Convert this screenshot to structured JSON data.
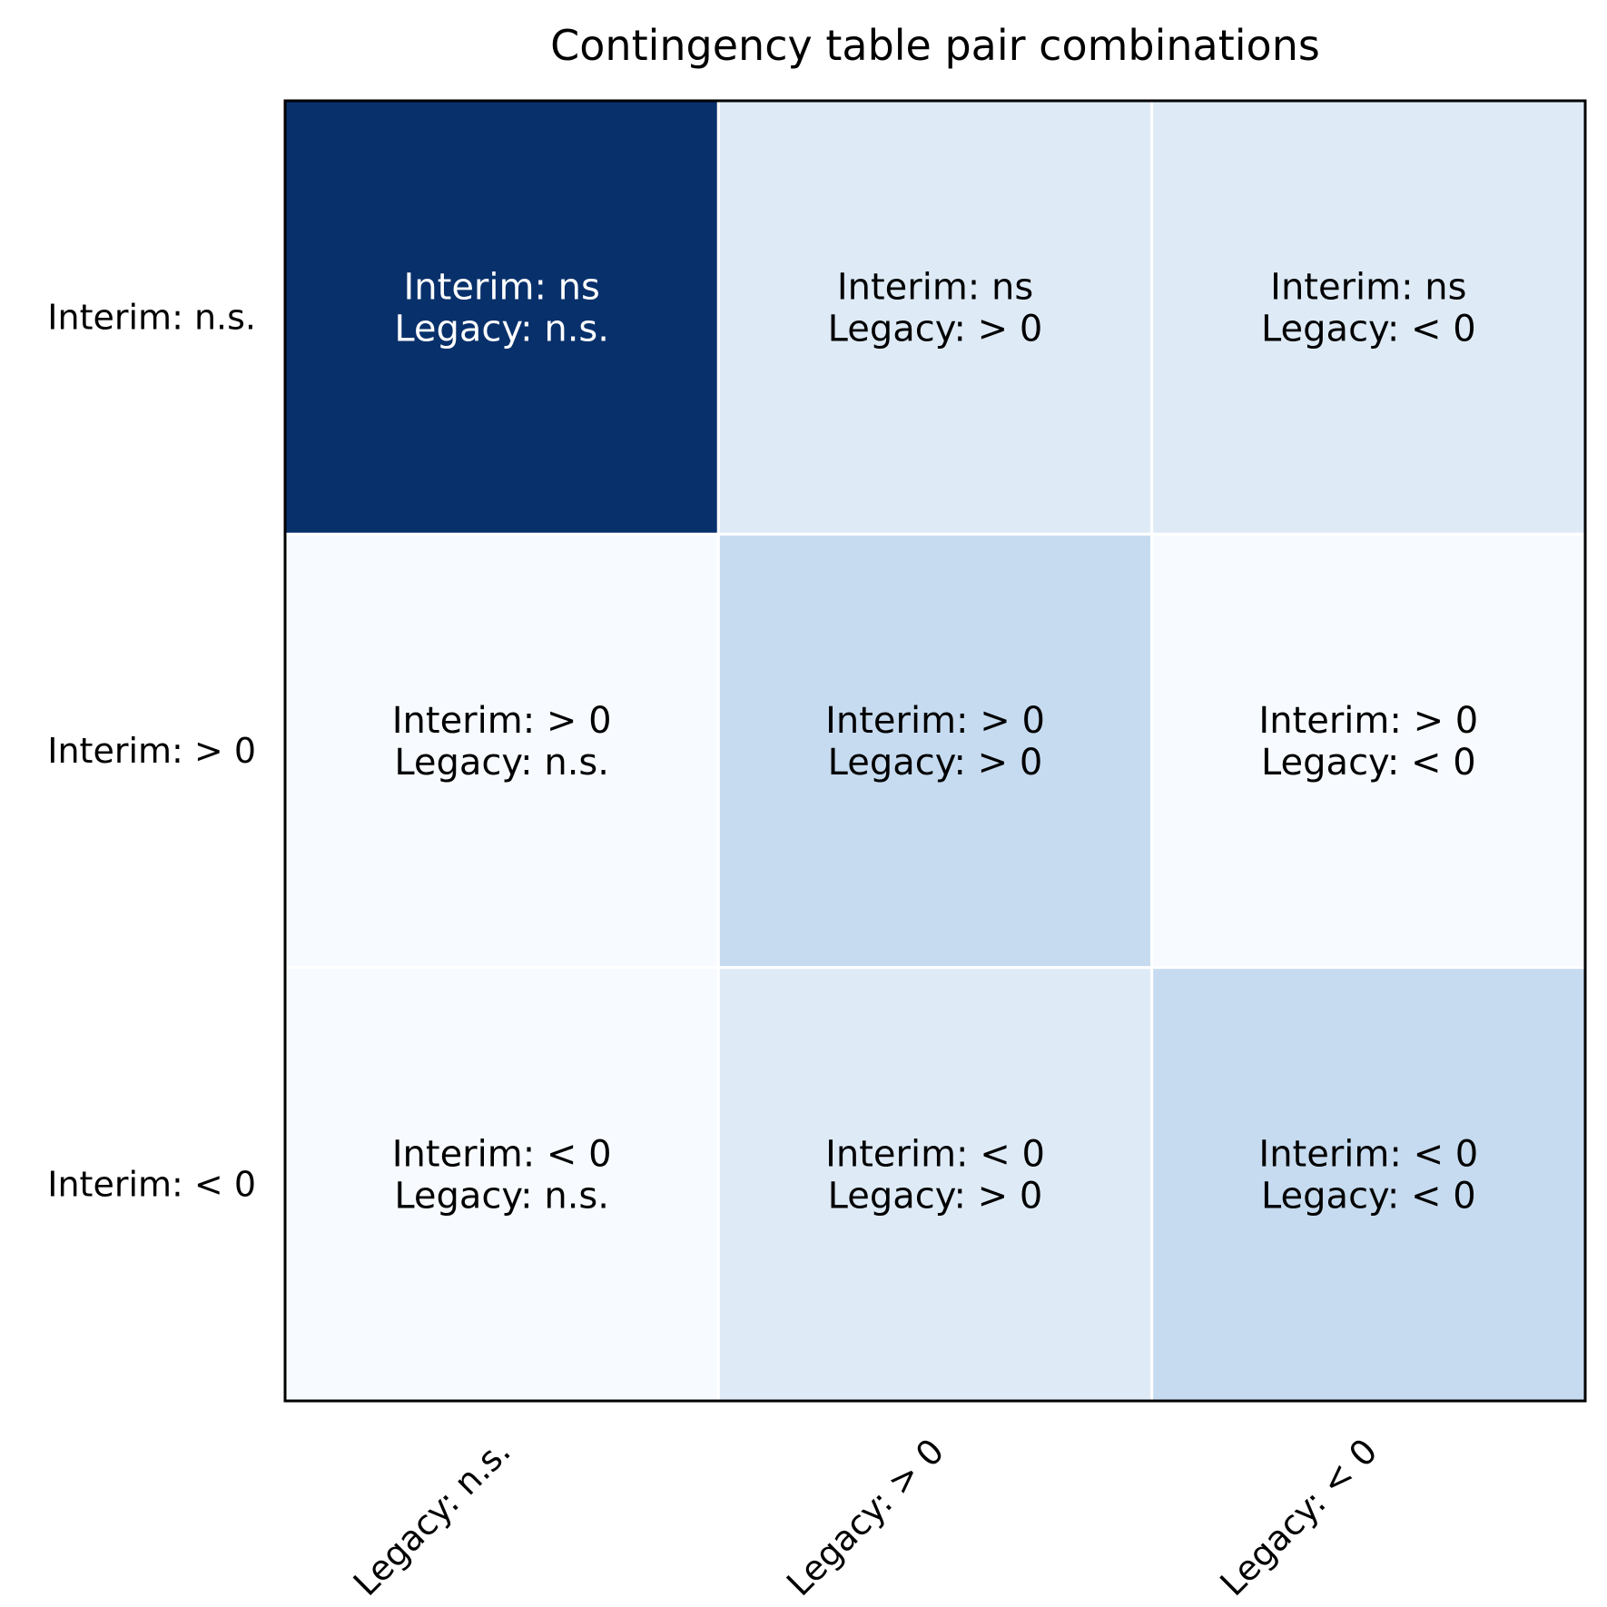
{
  "chart_data": {
    "type": "heatmap",
    "title": "Contingency table pair combinations",
    "xlabel": "",
    "ylabel": "",
    "x_categories": [
      "Legacy: n.s.",
      "Legacy: > 0",
      "Legacy: < 0"
    ],
    "y_categories": [
      "Interim: n.s.",
      "Interim: > 0",
      "Interim: < 0"
    ],
    "values": [
      [
        1.0,
        0.1,
        0.1
      ],
      [
        0.0,
        0.2,
        0.0
      ],
      [
        0.0,
        0.1,
        0.2
      ]
    ],
    "cell_labels": [
      [
        [
          "Interim: ns",
          "Legacy: n.s."
        ],
        [
          "Interim: ns",
          "Legacy: > 0"
        ],
        [
          "Interim: ns",
          "Legacy: < 0"
        ]
      ],
      [
        [
          "Interim: > 0",
          "Legacy: n.s."
        ],
        [
          "Interim: > 0",
          "Legacy: > 0"
        ],
        [
          "Interim: > 0",
          "Legacy: < 0"
        ]
      ],
      [
        [
          "Interim: < 0",
          "Legacy: n.s."
        ],
        [
          "Interim: < 0",
          "Legacy: > 0"
        ],
        [
          "Interim: < 0",
          "Legacy: < 0"
        ]
      ]
    ],
    "colormap": "Blues",
    "colors": {
      "low": "#f7fbff",
      "light": "#deebf7",
      "mid": "#c6dbef",
      "high": "#08306b",
      "text_dark": "#000000",
      "text_light": "#ffffff",
      "grid": "#ffffff",
      "frame": "#000000"
    },
    "grid": true,
    "legend": "none"
  }
}
